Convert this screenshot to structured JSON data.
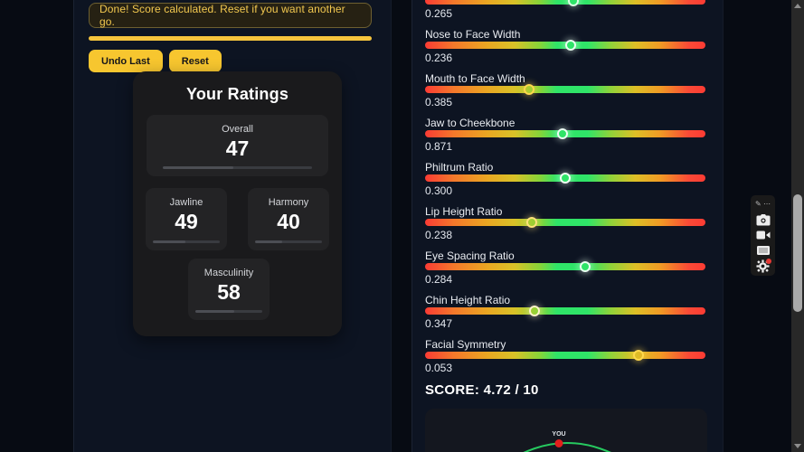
{
  "colors": {
    "accent_yellow": "#f5c43d",
    "panel_bg": "#0d1422",
    "card_bg": "#1a1a1c",
    "slider_green": "#2fe468",
    "slider_red": "#fb3b34",
    "curve_green": "#26c95f",
    "you_dot_red": "#e31f1c",
    "badge_red": "#e53935"
  },
  "left_panel": {
    "toast_message": "Done! Score calculated. Reset if you want another go.",
    "undo_button_label": "Undo Last",
    "reset_button_label": "Reset",
    "ratings": {
      "title": "Your Ratings",
      "stats": [
        {
          "label": "Overall",
          "value": 47
        },
        {
          "label": "Jawline",
          "value": 49
        },
        {
          "label": "Harmony",
          "value": 40
        },
        {
          "label": "Masculinity",
          "value": 58
        }
      ]
    }
  },
  "right_panel": {
    "sliders": [
      {
        "label": "",
        "value": "0.265",
        "marker_pct": 53,
        "ring_color": "#dcffe6"
      },
      {
        "label": "Nose to Face Width",
        "value": "0.236",
        "marker_pct": 52,
        "ring_color": "#e9fff1"
      },
      {
        "label": "Mouth to Face Width",
        "value": "0.385",
        "marker_pct": 37,
        "ring_color": "#ffd84d"
      },
      {
        "label": "Jaw to Cheekbone",
        "value": "0.871",
        "marker_pct": 49,
        "ring_color": "#ebfff3"
      },
      {
        "label": "Philtrum Ratio",
        "value": "0.300",
        "marker_pct": 50,
        "ring_color": "#f2fff6"
      },
      {
        "label": "Lip Height Ratio",
        "value": "0.238",
        "marker_pct": 38,
        "ring_color": "#ffe27a"
      },
      {
        "label": "Eye Spacing Ratio",
        "value": "0.284",
        "marker_pct": 57,
        "ring_color": "#e9fff1"
      },
      {
        "label": "Chin Height Ratio",
        "value": "0.347",
        "marker_pct": 39,
        "ring_color": "#fff3cb"
      },
      {
        "label": "Facial Symmetry",
        "value": "0.053",
        "marker_pct": 76,
        "ring_color": "#ffd84d"
      }
    ],
    "score_label": "SCORE: 4.72 / 10",
    "bell_chart": {
      "you_label": "YOU"
    }
  },
  "toolbar": {
    "items": [
      "drag-handle",
      "camera",
      "video-camera",
      "screen-capture",
      "settings"
    ],
    "handle_glyph": "✎ ⋯"
  }
}
